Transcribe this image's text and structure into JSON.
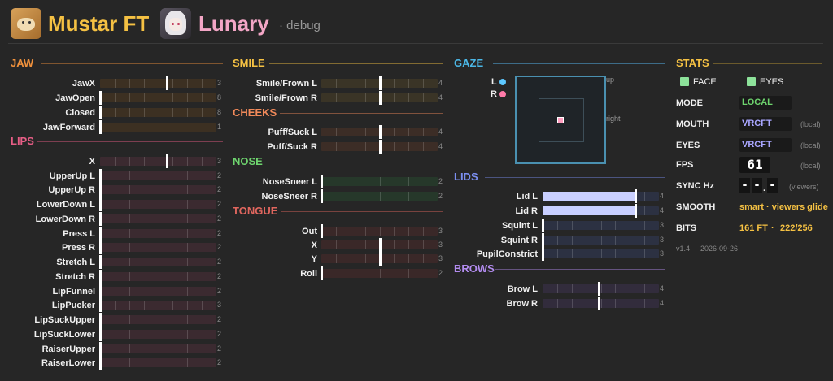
{
  "header": {
    "app_name": "Mustar FT",
    "avatar_name": "Lunary",
    "mode_label": "· debug"
  },
  "colors": {
    "jaw": "#f0913c",
    "lips": "#e85e86",
    "smile": "#f5c143",
    "cheeks": "#f28a5a",
    "nose": "#6ed46e",
    "tongue": "#e0665e",
    "gaze": "#4bb7e6",
    "lids": "#7b8ff0",
    "brows": "#b38cf0",
    "stats": "#f5c143",
    "gaze_left": "#5ec8ff",
    "gaze_right": "#ff7aa8"
  },
  "sections": [
    {
      "id": "jaw",
      "title": "JAW",
      "rows": [
        {
          "label": "JawX",
          "bits": "3",
          "type": "center",
          "value": 0.15
        },
        {
          "label": "JawOpen",
          "bits": "8",
          "type": "fill",
          "value": 0
        },
        {
          "label": "Closed",
          "bits": "8",
          "type": "fill",
          "value": 0
        },
        {
          "label": "JawForward",
          "bits": "1",
          "type": "fill",
          "value": 0
        }
      ]
    },
    {
      "id": "lips",
      "title": "LIPS",
      "rows": [
        {
          "label": "X",
          "bits": "3",
          "type": "center",
          "value": 0.15
        },
        {
          "label": "UpperUp L",
          "bits": "2",
          "type": "fill",
          "value": 0
        },
        {
          "label": "UpperUp R",
          "bits": "2",
          "type": "fill",
          "value": 0
        },
        {
          "label": "LowerDown L",
          "bits": "2",
          "type": "fill",
          "value": 0
        },
        {
          "label": "LowerDown R",
          "bits": "2",
          "type": "fill",
          "value": 0
        },
        {
          "label": "Press L",
          "bits": "2",
          "type": "fill",
          "value": 0
        },
        {
          "label": "Press R",
          "bits": "2",
          "type": "fill",
          "value": 0
        },
        {
          "label": "Stretch L",
          "bits": "2",
          "type": "fill",
          "value": 0
        },
        {
          "label": "Stretch R",
          "bits": "2",
          "type": "fill",
          "value": 0
        },
        {
          "label": "LipFunnel",
          "bits": "2",
          "type": "fill",
          "value": 0
        },
        {
          "label": "LipPucker",
          "bits": "3",
          "type": "fill",
          "value": 0
        },
        {
          "label": "LipSuckUpper",
          "bits": "2",
          "type": "fill",
          "value": 0
        },
        {
          "label": "LipSuckLower",
          "bits": "2",
          "type": "fill",
          "value": 0
        },
        {
          "label": "RaiserUpper",
          "bits": "2",
          "type": "fill",
          "value": 0
        },
        {
          "label": "RaiserLower",
          "bits": "2",
          "type": "fill",
          "value": 0
        }
      ]
    },
    {
      "id": "smile",
      "title": "SMILE",
      "rows": [
        {
          "label": "Smile/Frown L",
          "bits": "4",
          "type": "center",
          "value": 0
        },
        {
          "label": "Smile/Frown R",
          "bits": "4",
          "type": "center",
          "value": 0
        }
      ]
    },
    {
      "id": "cheeks",
      "title": "CHEEKS",
      "rows": [
        {
          "label": "Puff/Suck L",
          "bits": "4",
          "type": "center",
          "value": 0
        },
        {
          "label": "Puff/Suck R",
          "bits": "4",
          "type": "center",
          "value": 0
        }
      ]
    },
    {
      "id": "nose",
      "title": "NOSE",
      "rows": [
        {
          "label": "NoseSneer L",
          "bits": "2",
          "type": "fill",
          "value": 0
        },
        {
          "label": "NoseSneer R",
          "bits": "2",
          "type": "fill",
          "value": 0
        }
      ]
    },
    {
      "id": "tongue",
      "title": "TONGUE",
      "rows": [
        {
          "label": "Out",
          "bits": "3",
          "type": "fill",
          "value": 0
        },
        {
          "label": "X",
          "bits": "3",
          "type": "center",
          "value": 0
        },
        {
          "label": "Y",
          "bits": "3",
          "type": "center",
          "value": 0
        },
        {
          "label": "Roll",
          "bits": "2",
          "type": "fill",
          "value": 0
        }
      ]
    },
    {
      "id": "lids",
      "title": "LIDS",
      "rows": [
        {
          "label": "Lid L",
          "bits": "4",
          "type": "fill",
          "value": 0.8
        },
        {
          "label": "Lid R",
          "bits": "4",
          "type": "fill",
          "value": 0.8
        },
        {
          "label": "Squint L",
          "bits": "3",
          "type": "fill",
          "value": 0
        },
        {
          "label": "Squint R",
          "bits": "3",
          "type": "fill",
          "value": 0
        },
        {
          "label": "PupilConstrict",
          "bits": "3",
          "type": "fill",
          "value": 0
        }
      ]
    },
    {
      "id": "brows",
      "title": "BROWS",
      "rows": [
        {
          "label": "Brow L",
          "bits": "4",
          "type": "center",
          "value": -0.03
        },
        {
          "label": "Brow R",
          "bits": "4",
          "type": "center",
          "value": -0.03
        }
      ]
    }
  ],
  "gaze": {
    "title": "GAZE",
    "left_label": "L",
    "right_label": "R",
    "up_label": "up",
    "right_axis_label": "right",
    "x": 0,
    "y": 0
  },
  "stats": {
    "title": "STATS",
    "face_label": "FACE",
    "eyes_check_label": "EYES",
    "mode_label": "MODE",
    "mode_value": "LOCAL",
    "mouth_label": "MOUTH",
    "mouth_value": "VRCFT",
    "mouth_note": "(local)",
    "eyes_label": "EYES",
    "eyes_value": "VRCFT",
    "eyes_note": "(local)",
    "fps_label": "FPS",
    "fps_value": "61",
    "fps_note": "(local)",
    "sync_label": "SYNC Hz",
    "sync_value_1": "-",
    "sync_value_2": "-",
    "sync_sep": ".",
    "sync_value_3": "-",
    "sync_note": "(viewers)",
    "smooth_label": "SMOOTH",
    "smooth_value": "smart · viewers glide",
    "bits_label": "BITS",
    "bits_ft": "161 FT",
    "bits_sep": "·",
    "bits_total": "222/256",
    "version": "v1.4",
    "version_sep": "·",
    "date": "2026-09-26"
  }
}
